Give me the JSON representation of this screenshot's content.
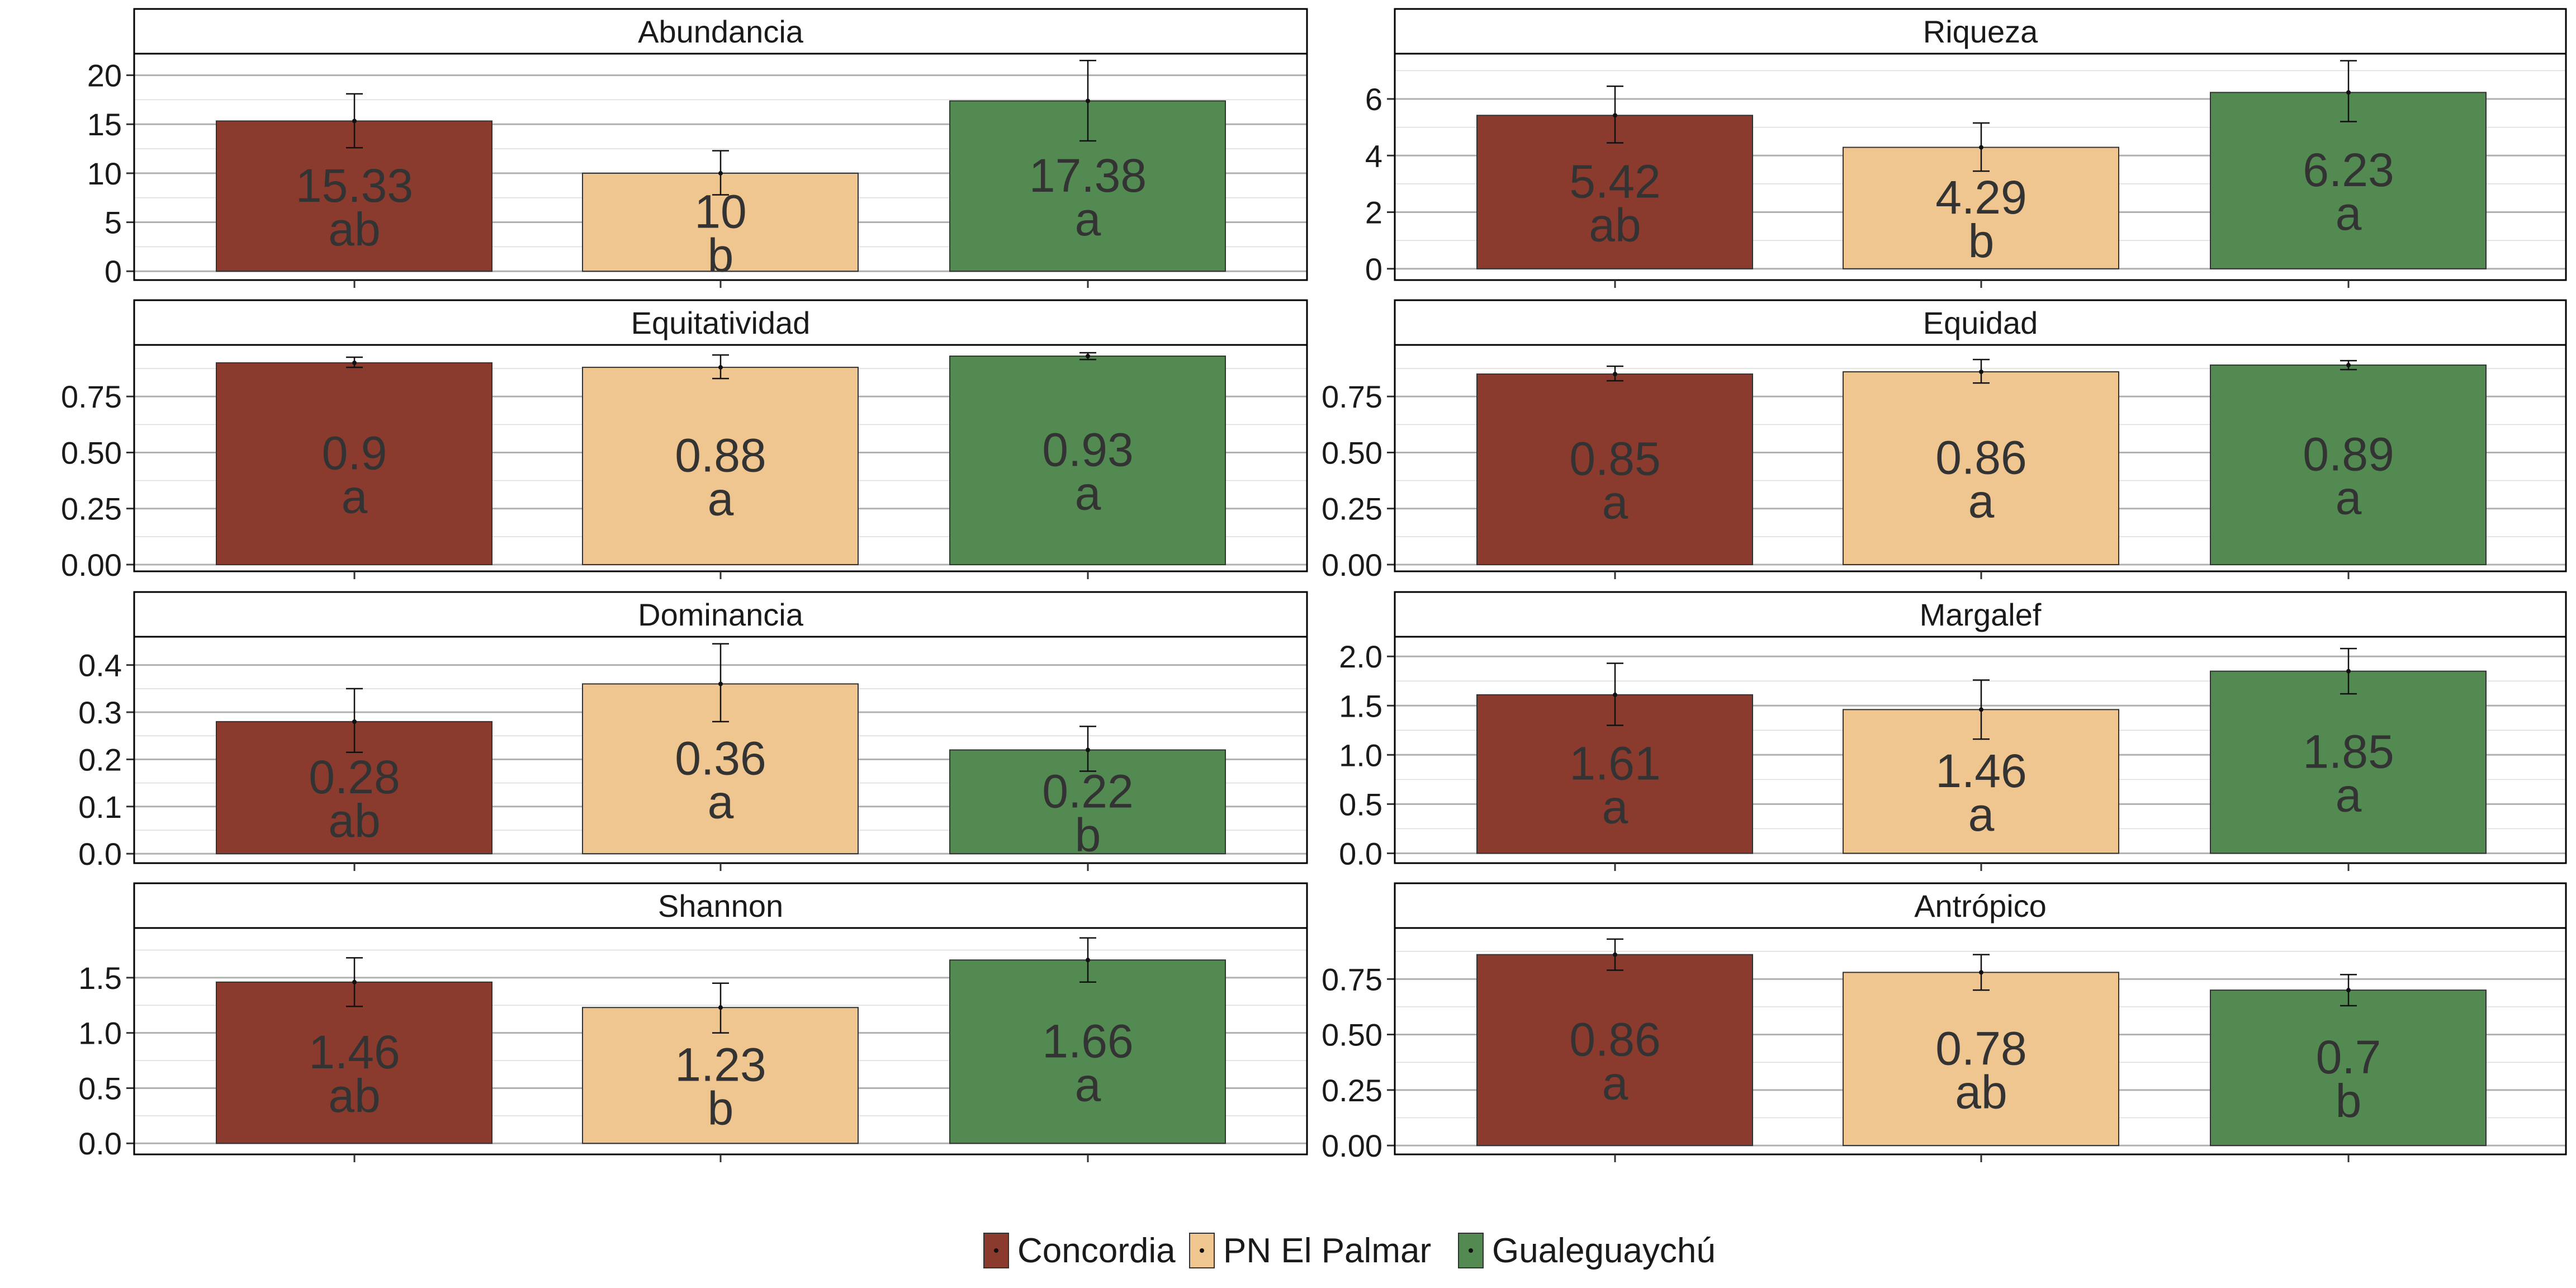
{
  "colors": {
    "Concordia": "#8B3A2E",
    "PN El Palmar": "#EFC590",
    "Gualeguaychú": "#528A52",
    "panel_border": "#000000",
    "grid": "#B0B0B0",
    "label_text": "#333333"
  },
  "legend": {
    "items": [
      {
        "label": "Concordia",
        "color": "#8B3A2E"
      },
      {
        "label": "PN El Palmar",
        "color": "#EFC590"
      },
      {
        "label": "Gualeguaychú",
        "color": "#528A52"
      }
    ]
  },
  "chart_data": [
    {
      "type": "bar",
      "title": "Abundancia",
      "categories": [
        "Concordia",
        "PN El Palmar",
        "Gualeguaychú"
      ],
      "values": [
        15.33,
        10,
        17.38
      ],
      "value_labels": [
        "15.33",
        "10",
        "17.38"
      ],
      "letters": [
        "ab",
        "b",
        "a"
      ],
      "err_low": [
        12.6,
        7.8,
        13.3
      ],
      "err_high": [
        18.1,
        12.3,
        21.5
      ],
      "ylim": [
        -0.9,
        22.2
      ],
      "yticks": [
        0,
        5,
        10,
        15,
        20
      ],
      "ytick_labels": [
        "0",
        "5",
        "10",
        "15",
        "20"
      ],
      "minor_ticks": [
        2.5,
        7.5,
        12.5,
        17.5
      ]
    },
    {
      "type": "bar",
      "title": "Riqueza",
      "categories": [
        "Concordia",
        "PN El Palmar",
        "Gualeguaychú"
      ],
      "values": [
        5.42,
        4.29,
        6.23
      ],
      "value_labels": [
        "5.42",
        "4.29",
        "6.23"
      ],
      "letters": [
        "ab",
        "b",
        "a"
      ],
      "err_low": [
        4.45,
        3.45,
        5.2
      ],
      "err_high": [
        6.45,
        5.15,
        7.35
      ],
      "ylim": [
        -0.4,
        7.6
      ],
      "yticks": [
        0,
        2,
        4,
        6
      ],
      "ytick_labels": [
        "0",
        "2",
        "4",
        "6"
      ],
      "minor_ticks": [
        1,
        3,
        5,
        7
      ]
    },
    {
      "type": "bar",
      "title": "Equitatividad",
      "categories": [
        "Concordia",
        "PN El Palmar",
        "Gualeguaychú"
      ],
      "values": [
        0.9,
        0.88,
        0.93
      ],
      "value_labels": [
        "0.9",
        "0.88",
        "0.93"
      ],
      "letters": [
        "a",
        "a",
        "a"
      ],
      "err_low": [
        0.88,
        0.83,
        0.915
      ],
      "err_high": [
        0.925,
        0.935,
        0.945
      ],
      "ylim": [
        -0.03,
        0.98
      ],
      "yticks": [
        0,
        0.25,
        0.5,
        0.75
      ],
      "ytick_labels": [
        "0.00",
        "0.25",
        "0.50",
        "0.75"
      ],
      "minor_ticks": [
        0.125,
        0.375,
        0.625,
        0.875
      ]
    },
    {
      "type": "bar",
      "title": "Equidad",
      "categories": [
        "Concordia",
        "PN El Palmar",
        "Gualeguaychú"
      ],
      "values": [
        0.85,
        0.86,
        0.89
      ],
      "value_labels": [
        "0.85",
        "0.86",
        "0.89"
      ],
      "letters": [
        "a",
        "a",
        "a"
      ],
      "err_low": [
        0.82,
        0.81,
        0.87
      ],
      "err_high": [
        0.885,
        0.915,
        0.91
      ],
      "ylim": [
        -0.03,
        0.98
      ],
      "yticks": [
        0,
        0.25,
        0.5,
        0.75
      ],
      "ytick_labels": [
        "0.00",
        "0.25",
        "0.50",
        "0.75"
      ],
      "minor_ticks": [
        0.125,
        0.375,
        0.625,
        0.875
      ]
    },
    {
      "type": "bar",
      "title": "Dominancia",
      "categories": [
        "Concordia",
        "PN El Palmar",
        "Gualeguaychú"
      ],
      "values": [
        0.28,
        0.36,
        0.22
      ],
      "value_labels": [
        "0.28",
        "0.36",
        "0.22"
      ],
      "letters": [
        "ab",
        "a",
        "b"
      ],
      "err_low": [
        0.215,
        0.28,
        0.175
      ],
      "err_high": [
        0.35,
        0.445,
        0.27
      ],
      "ylim": [
        -0.02,
        0.46
      ],
      "yticks": [
        0,
        0.1,
        0.2,
        0.3,
        0.4
      ],
      "ytick_labels": [
        "0.0",
        "0.1",
        "0.2",
        "0.3",
        "0.4"
      ],
      "minor_ticks": [
        0.05,
        0.15,
        0.25,
        0.35
      ]
    },
    {
      "type": "bar",
      "title": "Margalef",
      "categories": [
        "Concordia",
        "PN El Palmar",
        "Gualeguaychú"
      ],
      "values": [
        1.61,
        1.46,
        1.85
      ],
      "value_labels": [
        "1.61",
        "1.46",
        "1.85"
      ],
      "letters": [
        "a",
        "a",
        "a"
      ],
      "err_low": [
        1.3,
        1.16,
        1.62
      ],
      "err_high": [
        1.93,
        1.76,
        2.08
      ],
      "ylim": [
        -0.1,
        2.2
      ],
      "yticks": [
        0,
        0.5,
        1,
        1.5,
        2
      ],
      "ytick_labels": [
        "0.0",
        "0.5",
        "1.0",
        "1.5",
        "2.0"
      ],
      "minor_ticks": [
        0.25,
        0.75,
        1.25,
        1.75
      ]
    },
    {
      "type": "bar",
      "title": "Shannon",
      "categories": [
        "Concordia",
        "PN El Palmar",
        "Gualeguaychú"
      ],
      "values": [
        1.46,
        1.23,
        1.66
      ],
      "value_labels": [
        "1.46",
        "1.23",
        "1.66"
      ],
      "letters": [
        "ab",
        "b",
        "a"
      ],
      "err_low": [
        1.24,
        1.0,
        1.46
      ],
      "err_high": [
        1.68,
        1.45,
        1.86
      ],
      "ylim": [
        -0.1,
        1.95
      ],
      "yticks": [
        0,
        0.5,
        1,
        1.5
      ],
      "ytick_labels": [
        "0.0",
        "0.5",
        "1.0",
        "1.5"
      ],
      "minor_ticks": [
        0.25,
        0.75,
        1.25,
        1.75
      ]
    },
    {
      "type": "bar",
      "title": "Antrópico",
      "categories": [
        "Concordia",
        "PN El Palmar",
        "Gualeguaychú"
      ],
      "values": [
        0.86,
        0.78,
        0.7
      ],
      "value_labels": [
        "0.86",
        "0.78",
        "0.7"
      ],
      "letters": [
        "a",
        "ab",
        "b"
      ],
      "err_low": [
        0.79,
        0.7,
        0.63
      ],
      "err_high": [
        0.93,
        0.86,
        0.77
      ],
      "ylim": [
        -0.04,
        0.98
      ],
      "yticks": [
        0,
        0.25,
        0.5,
        0.75
      ],
      "ytick_labels": [
        "0.00",
        "0.25",
        "0.50",
        "0.75"
      ],
      "minor_ticks": [
        0.125,
        0.375,
        0.625,
        0.875
      ]
    }
  ]
}
